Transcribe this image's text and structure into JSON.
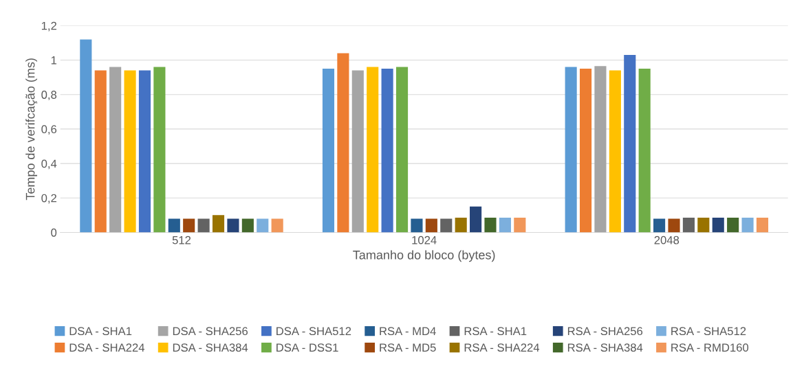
{
  "chart_data": {
    "type": "bar",
    "xlabel": "Tamanho do bloco (bytes)",
    "ylabel": "Tempo de verifcação (ms)",
    "categories": [
      "512",
      "1024",
      "2048"
    ],
    "series": [
      {
        "name": "DSA - SHA1",
        "color": "#5b9bd5",
        "values": [
          1.12,
          0.95,
          0.96
        ]
      },
      {
        "name": "DSA - SHA224",
        "color": "#ed7d31",
        "values": [
          0.94,
          1.04,
          0.95
        ]
      },
      {
        "name": "DSA - SHA256",
        "color": "#a5a5a5",
        "values": [
          0.96,
          0.94,
          0.965
        ]
      },
      {
        "name": "DSA - SHA384",
        "color": "#ffc000",
        "values": [
          0.94,
          0.96,
          0.94
        ]
      },
      {
        "name": "DSA - SHA512",
        "color": "#4472c4",
        "values": [
          0.94,
          0.95,
          1.03
        ]
      },
      {
        "name": "DSA - DSS1",
        "color": "#70ad47",
        "values": [
          0.96,
          0.96,
          0.95
        ]
      },
      {
        "name": "RSA - MD4",
        "color": "#255e91",
        "values": [
          0.08,
          0.08,
          0.08
        ]
      },
      {
        "name": "RSA - MD5",
        "color": "#9e480e",
        "values": [
          0.08,
          0.08,
          0.08
        ]
      },
      {
        "name": "RSA - SHA1",
        "color": "#636363",
        "values": [
          0.08,
          0.08,
          0.085
        ]
      },
      {
        "name": "RSA - SHA224",
        "color": "#997300",
        "values": [
          0.1,
          0.085,
          0.085
        ]
      },
      {
        "name": "RSA - SHA256",
        "color": "#264478",
        "values": [
          0.08,
          0.15,
          0.085
        ]
      },
      {
        "name": "RSA - SHA384",
        "color": "#43682b",
        "values": [
          0.08,
          0.085,
          0.085
        ]
      },
      {
        "name": "RSA - SHA512",
        "color": "#7cafdd",
        "values": [
          0.08,
          0.085,
          0.085
        ]
      },
      {
        "name": "RSA - RMD160",
        "color": "#f1975a",
        "values": [
          0.08,
          0.085,
          0.085
        ]
      }
    ],
    "ylim": [
      0,
      1.2
    ],
    "yticks": [
      {
        "value": 0,
        "label": "0"
      },
      {
        "value": 0.2,
        "label": "0,2"
      },
      {
        "value": 0.4,
        "label": "0,4"
      },
      {
        "value": 0.6,
        "label": "0,6"
      },
      {
        "value": 0.8,
        "label": "0,8"
      },
      {
        "value": 1,
        "label": "1"
      },
      {
        "value": 1.2,
        "label": "1,2"
      }
    ],
    "grid": "y",
    "legend": "bottom"
  }
}
